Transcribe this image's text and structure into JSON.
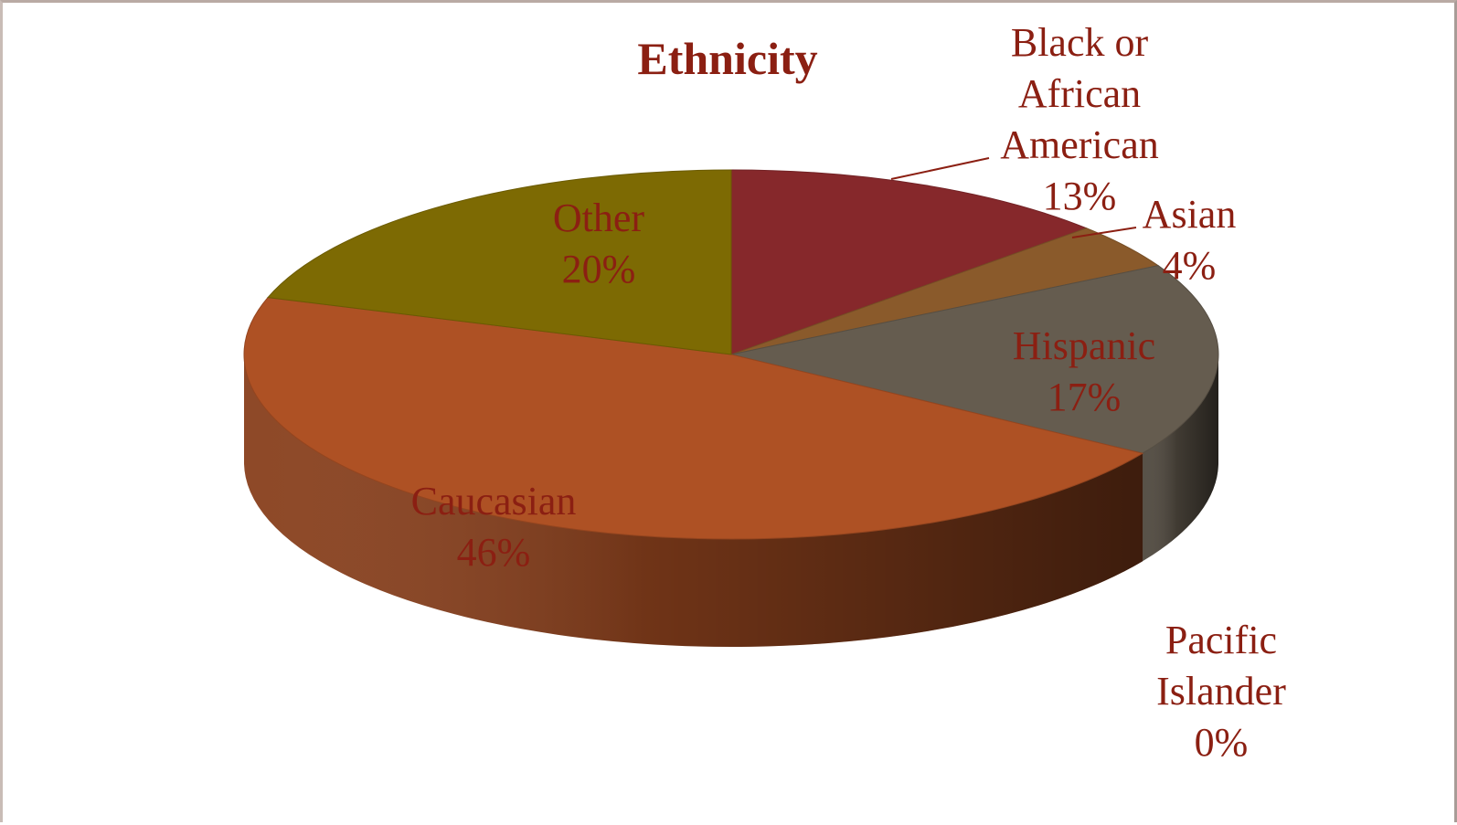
{
  "chart_data": {
    "type": "pie",
    "style": "3d",
    "title": "Ethnicity",
    "slices": [
      {
        "label": "Black or African American",
        "value": 13,
        "pct_text": "13%",
        "color": "#86282b"
      },
      {
        "label": "Asian",
        "value": 4,
        "pct_text": "4%",
        "color": "#8a5a2b"
      },
      {
        "label": "Hispanic",
        "value": 17,
        "pct_text": "17%",
        "color": "#655c4f"
      },
      {
        "label": "Pacific Islander",
        "value": 0,
        "pct_text": "0%",
        "color": "#3a3a32"
      },
      {
        "label": "Caucasian",
        "value": 46,
        "pct_text": "46%",
        "color": "#ae5124"
      },
      {
        "label": "Other",
        "value": 20,
        "pct_text": "20%",
        "color": "#7d6a03"
      }
    ],
    "label_color": "#8b1f12",
    "legend": "none"
  }
}
